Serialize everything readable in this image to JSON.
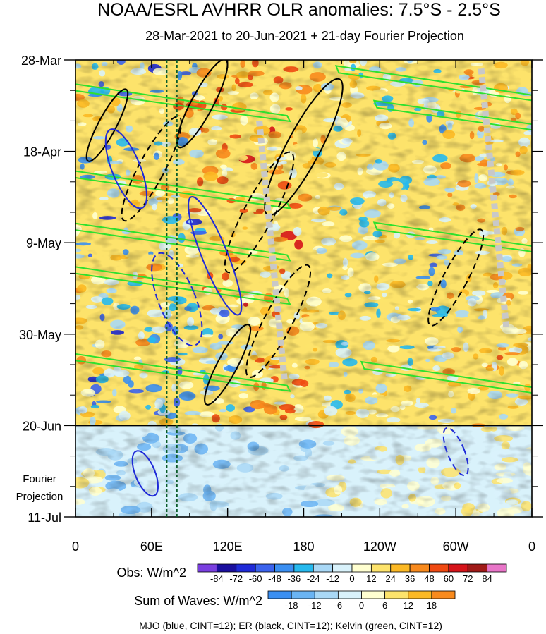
{
  "chart_data": {
    "type": "heatmap",
    "title": "NOAA/ESRL AVHRR OLR anomalies: 7.5°S - 2.5°S",
    "subtitle": "28-Mar-2021 to 20-Jun-2021 + 21-day Fourier Projection",
    "x_ticks": [
      "0",
      "60E",
      "120E",
      "180",
      "120W",
      "60W",
      "0"
    ],
    "x_values": [
      0,
      60,
      120,
      180,
      240,
      300,
      360
    ],
    "xlim": [
      0,
      360
    ],
    "y_ticks": [
      "28-Mar",
      "18-Apr",
      "9-May",
      "30-May",
      "20-Jun",
      "11-Jul"
    ],
    "y_days": [
      0,
      21,
      42,
      63,
      84,
      105
    ],
    "ylim": [
      0,
      105
    ],
    "observation_end_day": 84,
    "projection_label_line1": "Fourier",
    "projection_label_line2": "Projection",
    "reference_lines_lon": [
      72,
      80
    ],
    "obs_colorbar": {
      "label": "Obs: W/m^2",
      "levels": [
        "-84",
        "-72",
        "-60",
        "-48",
        "-36",
        "-24",
        "-12",
        "0",
        "12",
        "24",
        "36",
        "48",
        "60",
        "72",
        "84"
      ],
      "colors": [
        "#7a3fe0",
        "#1a0f9e",
        "#1f2ad8",
        "#3b63ee",
        "#3a8ff2",
        "#26b9ee",
        "#a9d8f6",
        "#d9f2fb",
        "#ffffd0",
        "#fde36b",
        "#fcb925",
        "#f88a1d",
        "#f04a12",
        "#d6141a",
        "#a01a18",
        "#e875c8"
      ]
    },
    "waves_colorbar": {
      "label": "Sum of Waves: W/m^2",
      "levels": [
        "-18",
        "-12",
        "-6",
        "0",
        "6",
        "12",
        "18"
      ],
      "colors": [
        "#3a8ff2",
        "#6ab4f3",
        "#a9d8f6",
        "#d9f2fb",
        "#ffffd0",
        "#fde36b",
        "#fcb925",
        "#f88a1d"
      ]
    },
    "contour_legend": "MJO (blue, CINT=12); ER (black, CINT=12); Kelvin (green, CINT=12)",
    "contour_colors": {
      "mjo": "#1f2ad8",
      "er": "#000000",
      "kelvin": "#2ee02e"
    }
  }
}
